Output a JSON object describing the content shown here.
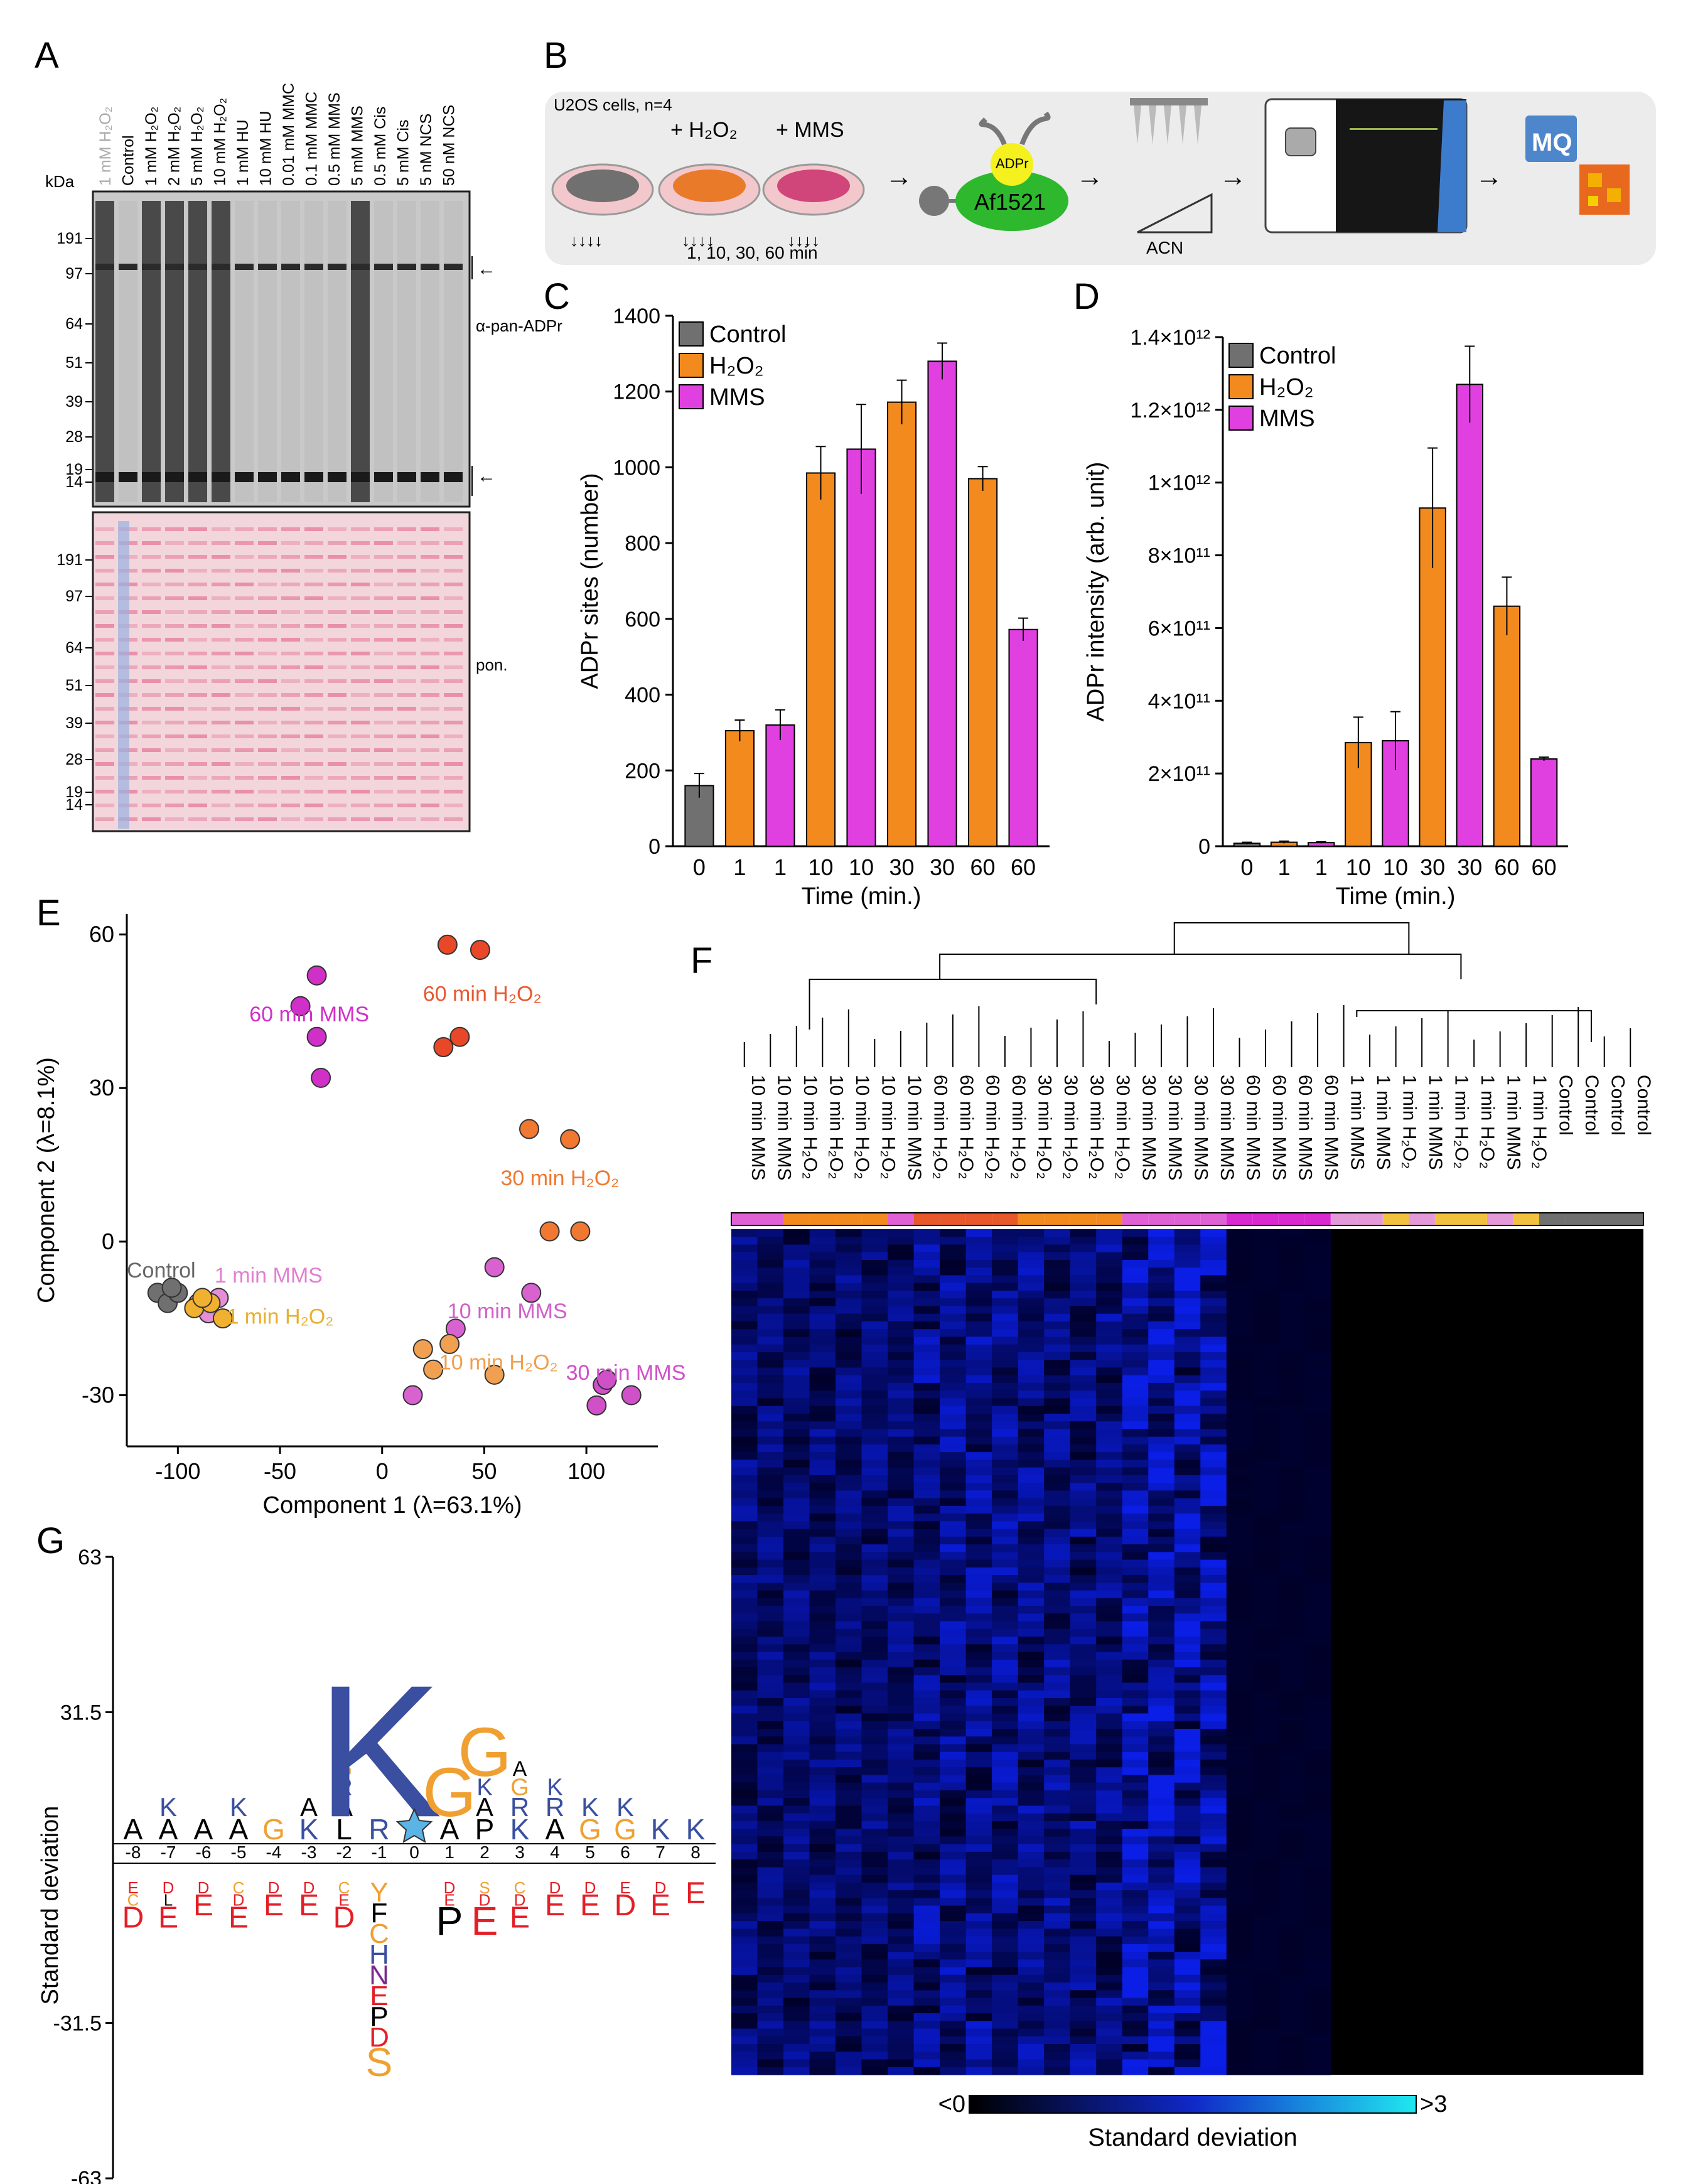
{
  "panels": {
    "a": "A",
    "b": "B",
    "c": "C",
    "d": "D",
    "e": "E",
    "f": "F",
    "g": "G"
  },
  "blot": {
    "lane_labels": [
      "1 mM H₂O₂",
      "Control",
      "1 mM H₂O₂",
      "2 mM H₂O₂",
      "5 mM H₂O₂",
      "10 mM H₂O₂",
      "1 mM HU",
      "10 mM HU",
      "0.01 mM MMC",
      "0.1 mM MMC",
      "0.5 mM MMS",
      "5 mM MMS",
      "0.5 mM Cis",
      "5 mM Cis",
      "5 nM NCS",
      "50 nM NCS"
    ],
    "kda_label": "kDa",
    "markers": [
      "191",
      "97",
      "64",
      "51",
      "39",
      "28",
      "19",
      "14"
    ],
    "antibody_label": "α-pan-ADPr",
    "ponceau_label": "pon."
  },
  "workflow": {
    "cells_label": "U2OS cells, n=4",
    "h2o2_label": "+ H₂O₂",
    "mms_label": "+ MMS",
    "times_label": "1, 10, 30, 60 min",
    "adpr_label": "ADPr",
    "af_label": "Af1521",
    "acn_label": "ACN",
    "mq_label": "MQ"
  },
  "colors": {
    "control": "#707070",
    "h2o2": "#F28A1E",
    "mms": "#E040E0",
    "h2o2_dark": "#E2561F",
    "heat_low": "#000000",
    "heat_mid": "#1028C8",
    "heat_high": "#20E8F0"
  },
  "chart_data": [
    {
      "type": "bar",
      "title": "",
      "xlabel": "Time (min.)",
      "ylabel": "ADPr sites (number)",
      "ylim": [
        0,
        1400
      ],
      "yticks": [
        "0",
        "200",
        "400",
        "600",
        "800",
        "1000",
        "1200",
        "1400"
      ],
      "categories": [
        "0",
        "1",
        "1",
        "10",
        "10",
        "30",
        "30",
        "60",
        "60"
      ],
      "groups": [
        "Control",
        "H2O2",
        "MMS",
        "H2O2",
        "MMS",
        "H2O2",
        "MMS",
        "H2O2",
        "MMS"
      ],
      "values": [
        160,
        305,
        320,
        985,
        1048,
        1172,
        1280,
        970,
        572
      ],
      "errors": [
        32,
        28,
        40,
        70,
        118,
        58,
        48,
        32,
        30
      ],
      "legend": [
        "Control",
        "H₂O₂",
        "MMS"
      ]
    },
    {
      "type": "bar",
      "title": "",
      "xlabel": "Time (min.)",
      "ylabel": "ADPr intensity (arb. unit)",
      "ylim": [
        0,
        1400000000000.0
      ],
      "yticks": [
        "0",
        "2×10¹¹",
        "4×10¹¹",
        "6×10¹¹",
        "8×10¹¹",
        "1×10¹²",
        "1.2×10¹²",
        "1.4×10¹²"
      ],
      "categories": [
        "0",
        "1",
        "1",
        "10",
        "10",
        "30",
        "30",
        "60",
        "60"
      ],
      "groups": [
        "Control",
        "H2O2",
        "MMS",
        "H2O2",
        "MMS",
        "H2O2",
        "MMS",
        "H2O2",
        "MMS"
      ],
      "values": [
        8000000000.0,
        11000000000.0,
        10000000000.0,
        285000000000.0,
        290000000000.0,
        930000000000.0,
        1270000000000.0,
        660000000000.0,
        240000000000.0
      ],
      "errors": [
        3000000000.0,
        3000000000.0,
        2000000000.0,
        70000000000.0,
        80000000000.0,
        165000000000.0,
        105000000000.0,
        80000000000.0,
        5000000000.0
      ],
      "legend": [
        "Control",
        "H₂O₂",
        "MMS"
      ]
    },
    {
      "type": "scatter",
      "title": "",
      "xlabel": "Component 1 (λ=63.1%)",
      "ylabel": "Component 2 (λ=8.1%)",
      "xlim": [
        -125,
        135
      ],
      "ylim": [
        -40,
        64
      ],
      "xticks": [
        "-100",
        "-50",
        "0",
        "50",
        "100"
      ],
      "yticks": [
        "-30",
        "0",
        "30",
        "60"
      ],
      "series": [
        {
          "name": "Control",
          "color": "#707070",
          "points": [
            [
              -110,
              -10
            ],
            [
              -105,
              -12
            ],
            [
              -100,
              -10
            ],
            [
              -103,
              -9
            ]
          ]
        },
        {
          "name": "1 min MMS",
          "color": "#E58ED8",
          "points": [
            [
              -80,
              -11
            ],
            [
              -90,
              -12
            ],
            [
              -85,
              -14
            ]
          ]
        },
        {
          "name": "1 min H₂O₂",
          "color": "#F0B030",
          "points": [
            [
              -92,
              -13
            ],
            [
              -84,
              -12
            ],
            [
              -78,
              -15
            ],
            [
              -88,
              -11
            ]
          ]
        },
        {
          "name": "10 min MMS",
          "color": "#D862D0",
          "points": [
            [
              55,
              -5
            ],
            [
              73,
              -10
            ],
            [
              36,
              -17
            ],
            [
              15,
              -30
            ]
          ]
        },
        {
          "name": "10 min H₂O₂",
          "color": "#F0A050",
          "points": [
            [
              20,
              -21
            ],
            [
              25,
              -25
            ],
            [
              33,
              -20
            ],
            [
              55,
              -26
            ]
          ]
        },
        {
          "name": "30 min MMS",
          "color": "#D050C8",
          "points": [
            [
              108,
              -28
            ],
            [
              105,
              -32
            ],
            [
              122,
              -30
            ],
            [
              110,
              -27
            ]
          ]
        },
        {
          "name": "30 min H₂O₂",
          "color": "#F07830",
          "points": [
            [
              72,
              22
            ],
            [
              92,
              20
            ],
            [
              82,
              2
            ],
            [
              97,
              2
            ]
          ]
        },
        {
          "name": "60 min MMS",
          "color": "#D030C8",
          "points": [
            [
              -32,
              52
            ],
            [
              -40,
              46
            ],
            [
              -32,
              40
            ],
            [
              -30,
              32
            ]
          ]
        },
        {
          "name": "60 min H₂O₂",
          "color": "#E84828",
          "points": [
            [
              32,
              58
            ],
            [
              48,
              57
            ],
            [
              38,
              40
            ],
            [
              30,
              38
            ]
          ]
        }
      ]
    },
    {
      "type": "heatmap",
      "title": "",
      "columns": [
        "10 min MMS",
        "10 min MMS",
        "10 min H₂O₂",
        "10 min H₂O₂",
        "10 min H₂O₂",
        "10 min H₂O₂",
        "10 min MMS",
        "60 min H₂O₂",
        "60 min H₂O₂",
        "60 min H₂O₂",
        "60 min H₂O₂",
        "30 min H₂O₂",
        "30 min H₂O₂",
        "30 min H₂O₂",
        "30 min H₂O₂",
        "30 min MMS",
        "30 min MMS",
        "30 min MMS",
        "30 min MMS",
        "60 min MMS",
        "60 min MMS",
        "60 min MMS",
        "60 min MMS",
        "1 min MMS",
        "1 min MMS",
        "1 min H₂O₂",
        "1 min MMS",
        "1 min H₂O₂",
        "1 min H₂O₂",
        "1 min MMS",
        "1 min H₂O₂",
        "Control",
        "Control",
        "Control",
        "Control"
      ],
      "colorbar_min": "<0",
      "colorbar_max": ">3",
      "colorbar_label": "Standard deviation"
    },
    {
      "type": "table",
      "title": "",
      "ylabel": "Standard deviation",
      "yticks": [
        "63",
        "31.5",
        "-31.5",
        "-63"
      ],
      "positions": [
        "-8",
        "-7",
        "-6",
        "-5",
        "-4",
        "-3",
        "-2",
        "-1",
        "0",
        "1",
        "2",
        "3",
        "4",
        "5",
        "6",
        "7",
        "8"
      ],
      "top_letters": {
        "-8": "A",
        "-7": "KA",
        "-6": "A",
        "-5": "KA",
        "-4": "G",
        "-3": "AK",
        "-2": "GRAL",
        "-1": "KR",
        "1": "GA",
        "2": "GKAP",
        "3": "AGRK",
        "4": "KRA",
        "5": "KG",
        "6": "KG",
        "7": "K",
        "8": "K"
      },
      "bottom_letters": {
        "-8": "ECD",
        "-7": "DLE",
        "-6": "DE",
        "-5": "CDE",
        "-4": "DE",
        "-3": "DE",
        "-2": "CED",
        "-1": "YFCHNEPDS",
        "1": "DEP",
        "2": "SDE",
        "3": "CDE",
        "4": "DE",
        "5": "DE",
        "6": "ED",
        "7": "DE",
        "8": "E"
      }
    }
  ]
}
